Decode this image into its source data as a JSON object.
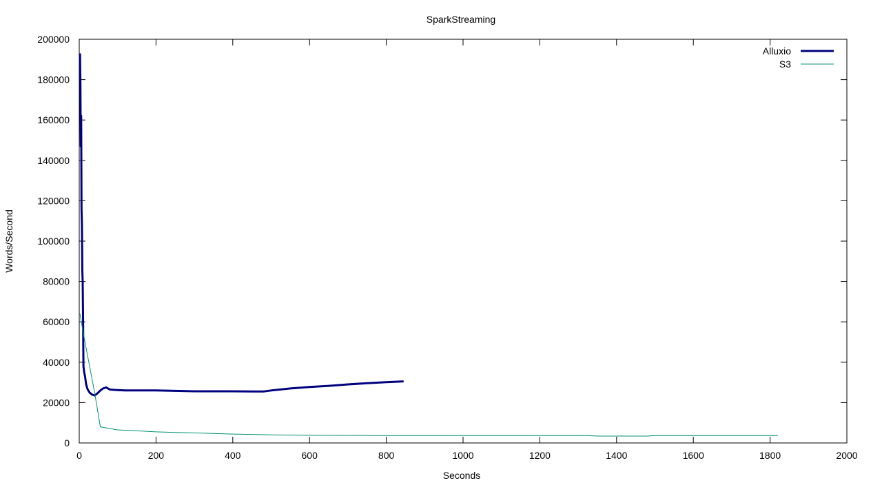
{
  "chart_data": {
    "type": "line",
    "title": "SparkStreaming",
    "xlabel": "Seconds",
    "ylabel": "Words/Second",
    "xlim": [
      0,
      2000
    ],
    "ylim": [
      0,
      200000
    ],
    "xticks": [
      0,
      200,
      400,
      600,
      800,
      1000,
      1200,
      1400,
      1600,
      1800,
      2000
    ],
    "yticks": [
      0,
      20000,
      40000,
      60000,
      80000,
      100000,
      120000,
      140000,
      160000,
      180000,
      200000
    ],
    "grid": false,
    "legend": "top-right",
    "series": [
      {
        "name": "Alluxio",
        "color": "#000080",
        "line_width": 3,
        "x": [
          2,
          3,
          4,
          5,
          6,
          7,
          8,
          9,
          10,
          11,
          13,
          15,
          18,
          22,
          27,
          33,
          40,
          47,
          55,
          62,
          70,
          80,
          90,
          100,
          120,
          150,
          200,
          250,
          300,
          350,
          400,
          450,
          480,
          500,
          550,
          600,
          650,
          700,
          750,
          800,
          845
        ],
        "y": [
          193000,
          178000,
          147000,
          162000,
          116000,
          108000,
          85000,
          80000,
          60000,
          38000,
          35000,
          33000,
          29000,
          26500,
          25000,
          24000,
          23500,
          24500,
          26000,
          27000,
          27500,
          26500,
          26300,
          26200,
          26000,
          26000,
          26000,
          25800,
          25600,
          25600,
          25600,
          25500,
          25500,
          26000,
          27000,
          27700,
          28300,
          29000,
          29600,
          30100,
          30500
        ]
      },
      {
        "name": "S3",
        "color": "#009070",
        "line_width": 1,
        "x": [
          2,
          10,
          20,
          30,
          40,
          55,
          100,
          150,
          200,
          250,
          300,
          350,
          400,
          500,
          600,
          800,
          1000,
          1200,
          1320,
          1350,
          1480,
          1500,
          1600,
          1820
        ],
        "y": [
          64000,
          55000,
          45000,
          35000,
          25000,
          8000,
          6500,
          6000,
          5500,
          5200,
          5000,
          4700,
          4400,
          4000,
          3800,
          3700,
          3700,
          3700,
          3700,
          3400,
          3400,
          3700,
          3700,
          3700
        ]
      }
    ]
  }
}
